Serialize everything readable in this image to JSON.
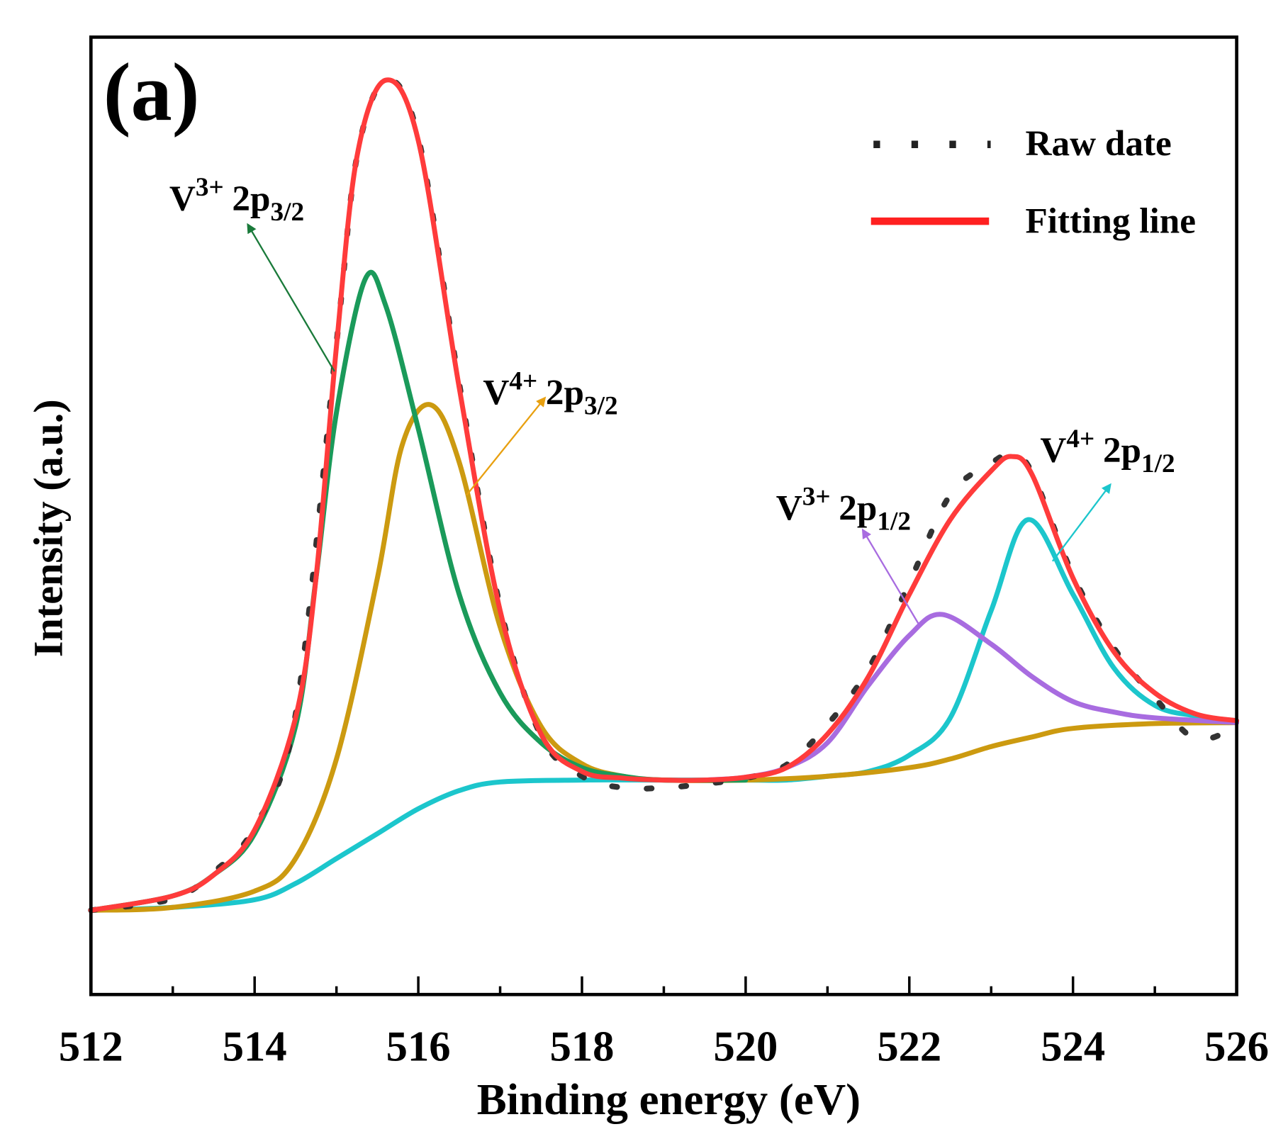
{
  "chart_data": {
    "type": "line",
    "panel_label": "(a)",
    "xlabel": "Binding energy (eV)",
    "ylabel": "Intensity (a.u.)",
    "xlim": [
      512,
      526
    ],
    "ylim": [
      0,
      100
    ],
    "x_ticks": [
      "512",
      "514",
      "516",
      "518",
      "520",
      "522",
      "524",
      "526"
    ],
    "y_ticks": [],
    "grid": false,
    "legend_position": "top-right",
    "legend": [
      {
        "label": "Raw date",
        "style": "dotted",
        "color": "#333333"
      },
      {
        "label": "Fitting line",
        "style": "solid",
        "color": "#ff3b3b"
      }
    ],
    "series": [
      {
        "name": "Raw date",
        "color": "#333333",
        "style": "dotted",
        "points": [
          [
            512,
            8.8
          ],
          [
            513,
            10.0
          ],
          [
            513.5,
            12.8
          ],
          [
            514,
            17.5
          ],
          [
            514.5,
            29.2
          ],
          [
            515,
            68.0
          ],
          [
            515.25,
            87.5
          ],
          [
            515.6,
            95.5
          ],
          [
            516,
            89.5
          ],
          [
            516.5,
            63.8
          ],
          [
            517,
            40.5
          ],
          [
            517.5,
            27.0
          ],
          [
            518,
            22.8
          ],
          [
            518.5,
            21.6
          ],
          [
            519,
            21.6
          ],
          [
            519.5,
            22.0
          ],
          [
            520,
            22.6
          ],
          [
            520.5,
            24.0
          ],
          [
            521,
            28.2
          ],
          [
            521.5,
            34.0
          ],
          [
            522,
            43.0
          ],
          [
            522.5,
            52.2
          ],
          [
            523,
            55.5
          ],
          [
            523.25,
            56.4
          ],
          [
            523.5,
            54.5
          ],
          [
            524,
            43.8
          ],
          [
            524.5,
            36.2
          ],
          [
            525,
            31.0
          ],
          [
            525.5,
            26.7
          ],
          [
            526,
            28.0
          ]
        ]
      },
      {
        "name": "Fitting line",
        "color": "#ff3b3b",
        "style": "solid",
        "points": [
          [
            512,
            8.8
          ],
          [
            513,
            10.3
          ],
          [
            513.5,
            12.5
          ],
          [
            514,
            17.2
          ],
          [
            514.5,
            28.9
          ],
          [
            514.75,
            43.5
          ],
          [
            515,
            67.7
          ],
          [
            515.25,
            87.5
          ],
          [
            515.6,
            95.5
          ],
          [
            516,
            89.2
          ],
          [
            516.5,
            63.4
          ],
          [
            517,
            40.1
          ],
          [
            517.5,
            27.2
          ],
          [
            518,
            23.3
          ],
          [
            518.5,
            22.6
          ],
          [
            519,
            22.4
          ],
          [
            519.5,
            22.4
          ],
          [
            520,
            22.7
          ],
          [
            520.5,
            23.7
          ],
          [
            521,
            27.2
          ],
          [
            521.5,
            33.2
          ],
          [
            522,
            41.8
          ],
          [
            522.5,
            49.6
          ],
          [
            523,
            54.7
          ],
          [
            523.25,
            56.2
          ],
          [
            523.5,
            54.3
          ],
          [
            524,
            43.5
          ],
          [
            524.5,
            35.8
          ],
          [
            525,
            31.5
          ],
          [
            525.5,
            29.3
          ],
          [
            526,
            28.6
          ]
        ]
      },
      {
        "color": "#1a9a5a",
        "style": "solid",
        "points": [
          [
            512,
            8.8
          ],
          [
            513,
            10.3
          ],
          [
            513.5,
            12.5
          ],
          [
            514,
            16.8
          ],
          [
            514.5,
            28.0
          ],
          [
            514.75,
            43.5
          ],
          [
            515,
            60.8
          ],
          [
            515.35,
            74.7
          ],
          [
            515.6,
            72.0
          ],
          [
            516,
            59.1
          ],
          [
            516.5,
            41.8
          ],
          [
            517,
            31.5
          ],
          [
            517.5,
            26.3
          ],
          [
            518,
            23.7
          ],
          [
            518.5,
            22.8
          ],
          [
            519,
            22.4
          ],
          [
            520,
            22.4
          ]
        ]
      },
      {
        "color": "#cc9a10",
        "style": "solid",
        "points": [
          [
            512,
            8.8
          ],
          [
            513,
            9.1
          ],
          [
            514,
            10.8
          ],
          [
            514.5,
            14.2
          ],
          [
            515,
            24.6
          ],
          [
            515.5,
            43.5
          ],
          [
            515.8,
            57.3
          ],
          [
            516.15,
            61.6
          ],
          [
            516.5,
            55.6
          ],
          [
            517,
            38.4
          ],
          [
            517.5,
            28.0
          ],
          [
            518,
            24.1
          ],
          [
            518.5,
            22.8
          ],
          [
            519,
            22.4
          ],
          [
            520,
            22.4
          ],
          [
            521,
            22.8
          ],
          [
            522,
            23.7
          ],
          [
            522.5,
            24.6
          ],
          [
            523,
            25.9
          ],
          [
            523.5,
            26.9
          ],
          [
            524,
            27.8
          ],
          [
            525,
            28.3
          ],
          [
            526,
            28.4
          ]
        ]
      },
      {
        "color": "#a86ce0",
        "style": "solid",
        "points": [
          [
            519.5,
            22.4
          ],
          [
            520,
            22.7
          ],
          [
            520.5,
            23.7
          ],
          [
            521,
            26.3
          ],
          [
            521.5,
            32.3
          ],
          [
            522,
            37.5
          ],
          [
            522.4,
            39.7
          ],
          [
            523,
            36.6
          ],
          [
            523.5,
            33.2
          ],
          [
            524,
            30.6
          ],
          [
            524.5,
            29.5
          ],
          [
            525,
            28.9
          ],
          [
            526,
            28.4
          ]
        ]
      },
      {
        "color": "#1cc6cc",
        "style": "solid",
        "points": [
          [
            512,
            8.8
          ],
          [
            513,
            9.1
          ],
          [
            514,
            9.9
          ],
          [
            514.5,
            11.6
          ],
          [
            515,
            14.2
          ],
          [
            515.5,
            16.8
          ],
          [
            516,
            19.4
          ],
          [
            516.5,
            21.3
          ],
          [
            517,
            22.2
          ],
          [
            518,
            22.4
          ],
          [
            519,
            22.4
          ],
          [
            520,
            22.4
          ],
          [
            520.5,
            22.4
          ],
          [
            521,
            22.8
          ],
          [
            521.5,
            23.3
          ],
          [
            522,
            25.0
          ],
          [
            522.5,
            28.9
          ],
          [
            523,
            40.1
          ],
          [
            523.45,
            49.6
          ],
          [
            524,
            41.8
          ],
          [
            524.5,
            34.1
          ],
          [
            525,
            30.2
          ],
          [
            525.5,
            29.1
          ],
          [
            526,
            28.6
          ]
        ]
      }
    ],
    "annotations": [
      {
        "ion": "V",
        "charge": "3+",
        "orbital": "2p",
        "sub": "3/2",
        "color": "#1a7a3a"
      },
      {
        "ion": "V",
        "charge": "4+",
        "orbital": "2p",
        "sub": "3/2",
        "color": "#e8a010"
      },
      {
        "ion": "V",
        "charge": "3+",
        "orbital": "2p",
        "sub": "1/2",
        "color": "#a86ce0"
      },
      {
        "ion": "V",
        "charge": "4+",
        "orbital": "2p",
        "sub": "1/2",
        "color": "#1cc6cc"
      }
    ]
  }
}
